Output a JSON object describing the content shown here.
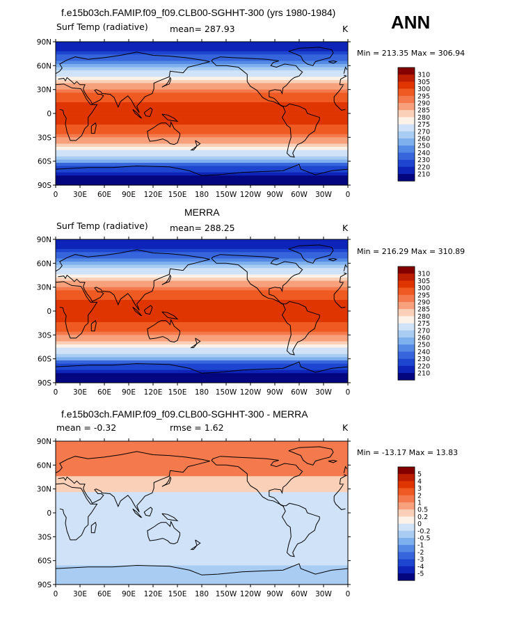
{
  "season_label": "ANN",
  "panels": [
    {
      "title": "f.e15b03ch.FAMIP.f09_f09.CLB00-SGHHT-300 (yrs 1980-1984)",
      "left_label": "Surf Temp (radiative)",
      "center_label": "mean= 287.93",
      "right_label": "K",
      "minmax": "Min = 213.35  Max = 306.94",
      "colorbar": {
        "labels": [
          "310",
          "305",
          "300",
          "295",
          "290",
          "285",
          "280",
          "275",
          "270",
          "260",
          "250",
          "240",
          "230",
          "220",
          "210"
        ],
        "colors": [
          "#840000",
          "#bd1d00",
          "#df3500",
          "#ef5a22",
          "#f47a4e",
          "#f7a07c",
          "#fad1b8",
          "#fdf2e8",
          "#cfe2f7",
          "#a9ccf3",
          "#7fb0ee",
          "#5589e6",
          "#3765dc",
          "#1e45cf",
          "#0e24b8",
          "#03067f"
        ]
      }
    },
    {
      "title": "MERRA",
      "left_label": "Surf Temp (radiative)",
      "center_label": "mean= 288.25",
      "right_label": "K",
      "minmax": "Min = 216.29  Max = 310.89",
      "colorbar": {
        "labels": [
          "310",
          "305",
          "300",
          "295",
          "290",
          "285",
          "280",
          "275",
          "270",
          "260",
          "250",
          "240",
          "230",
          "220",
          "210"
        ],
        "colors": [
          "#840000",
          "#bd1d00",
          "#df3500",
          "#ef5a22",
          "#f47a4e",
          "#f7a07c",
          "#fad1b8",
          "#fdf2e8",
          "#cfe2f7",
          "#a9ccf3",
          "#7fb0ee",
          "#5589e6",
          "#3765dc",
          "#1e45cf",
          "#0e24b8",
          "#03067f"
        ]
      }
    },
    {
      "title": "f.e15b03ch.FAMIP.f09_f09.CLB00-SGHHT-300 - MERRA",
      "left_label": "mean =   -0.32",
      "center_label": "rmse =    1.62",
      "right_label": "K",
      "minmax": "Min = -13.17  Max =  13.83",
      "colorbar": {
        "labels": [
          "5",
          "4",
          "3",
          "2",
          "1",
          "0.5",
          "0.2",
          "0",
          "-0.2",
          "-0.5",
          "-1",
          "-2",
          "-3",
          "-4",
          "-5"
        ],
        "colors": [
          "#840000",
          "#bd1d00",
          "#df3500",
          "#ef5a22",
          "#f47a4e",
          "#f7a07c",
          "#fad1b8",
          "#fdf2e8",
          "#cfe2f7",
          "#a9ccf3",
          "#7fb0ee",
          "#5589e6",
          "#3765dc",
          "#1e45cf",
          "#0e24b8",
          "#03067f"
        ]
      }
    }
  ],
  "axes": {
    "lat_labels": [
      "90N",
      "60N",
      "30N",
      "0",
      "30S",
      "60S",
      "90S"
    ],
    "lon_labels": [
      "0",
      "30E",
      "60E",
      "90E",
      "120E",
      "150E",
      "180",
      "150W",
      "120W",
      "90W",
      "60W",
      "30W",
      "0"
    ]
  },
  "chart_data": {
    "type": "heatmap",
    "season": "ANN",
    "variable": "Surf Temp (radiative)",
    "units": "K",
    "maps": [
      {
        "title": "f.e15b03ch.FAMIP.f09_f09.CLB00-SGHHT-300 (yrs 1980-1984)",
        "mean": 287.93,
        "min": 213.35,
        "max": 306.94,
        "levels": [
          210,
          220,
          230,
          240,
          250,
          260,
          270,
          275,
          280,
          285,
          290,
          295,
          300,
          305,
          310
        ]
      },
      {
        "title": "MERRA",
        "mean": 288.25,
        "min": 216.29,
        "max": 310.89,
        "levels": [
          210,
          220,
          230,
          240,
          250,
          260,
          270,
          275,
          280,
          285,
          290,
          295,
          300,
          305,
          310
        ]
      },
      {
        "title": "f.e15b03ch.FAMIP.f09_f09.CLB00-SGHHT-300 - MERRA",
        "mean": -0.32,
        "rmse": 1.62,
        "min": -13.17,
        "max": 13.83,
        "levels": [
          -5,
          -4,
          -3,
          -2,
          -1,
          -0.5,
          -0.2,
          0,
          0.2,
          0.5,
          1,
          2,
          3,
          4,
          5
        ]
      }
    ],
    "lat_range": [
      -90,
      90
    ],
    "lon_range": [
      0,
      360
    ]
  }
}
